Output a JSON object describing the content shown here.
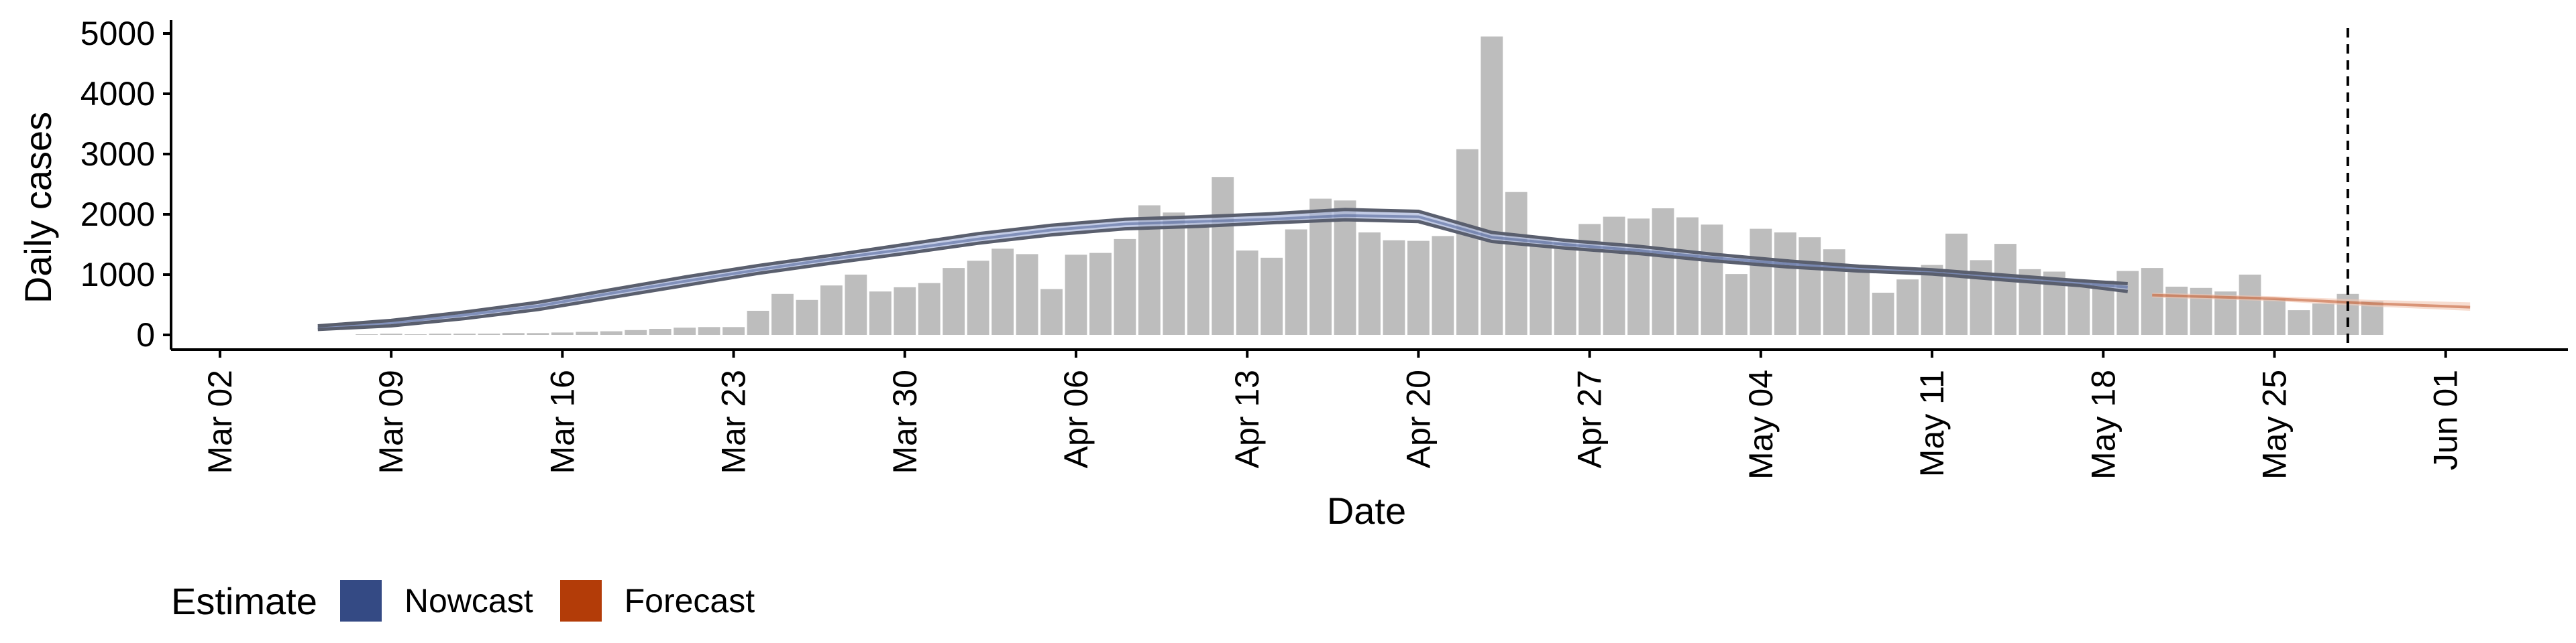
{
  "chart_data": {
    "type": "bar",
    "xlabel": "Date",
    "ylabel": "Daily cases",
    "ylim": [
      0,
      5000
    ],
    "xlim": [
      "2020-02-29",
      "2020-06-06"
    ],
    "y_ticks": [
      0,
      1000,
      2000,
      3000,
      4000,
      5000
    ],
    "x_ticks": [
      {
        "date": "2020-03-02",
        "label": "Mar 02"
      },
      {
        "date": "2020-03-09",
        "label": "Mar 09"
      },
      {
        "date": "2020-03-16",
        "label": "Mar 16"
      },
      {
        "date": "2020-03-23",
        "label": "Mar 23"
      },
      {
        "date": "2020-03-30",
        "label": "Mar 30"
      },
      {
        "date": "2020-04-06",
        "label": "Apr 06"
      },
      {
        "date": "2020-04-13",
        "label": "Apr 13"
      },
      {
        "date": "2020-04-20",
        "label": "Apr 20"
      },
      {
        "date": "2020-04-27",
        "label": "Apr 27"
      },
      {
        "date": "2020-05-04",
        "label": "May 04"
      },
      {
        "date": "2020-05-11",
        "label": "May 11"
      },
      {
        "date": "2020-05-18",
        "label": "May 18"
      },
      {
        "date": "2020-05-25",
        "label": "May 25"
      },
      {
        "date": "2020-06-01",
        "label": "Jun 01"
      }
    ],
    "grid": false,
    "legend_position": "bottom-left",
    "bars": {
      "color": "#bdbdbd",
      "x": [
        "2020-03-06",
        "2020-03-07",
        "2020-03-08",
        "2020-03-09",
        "2020-03-10",
        "2020-03-11",
        "2020-03-12",
        "2020-03-13",
        "2020-03-14",
        "2020-03-15",
        "2020-03-16",
        "2020-03-17",
        "2020-03-18",
        "2020-03-19",
        "2020-03-20",
        "2020-03-21",
        "2020-03-22",
        "2020-03-23",
        "2020-03-24",
        "2020-03-25",
        "2020-03-26",
        "2020-03-27",
        "2020-03-28",
        "2020-03-29",
        "2020-03-30",
        "2020-03-31",
        "2020-04-01",
        "2020-04-02",
        "2020-04-03",
        "2020-04-04",
        "2020-04-05",
        "2020-04-06",
        "2020-04-07",
        "2020-04-08",
        "2020-04-09",
        "2020-04-10",
        "2020-04-11",
        "2020-04-12",
        "2020-04-13",
        "2020-04-14",
        "2020-04-15",
        "2020-04-16",
        "2020-04-17",
        "2020-04-18",
        "2020-04-19",
        "2020-04-20",
        "2020-04-21",
        "2020-04-22",
        "2020-04-23",
        "2020-04-24",
        "2020-04-25",
        "2020-04-26",
        "2020-04-27",
        "2020-04-28",
        "2020-04-29",
        "2020-04-30",
        "2020-05-01",
        "2020-05-02",
        "2020-05-03",
        "2020-05-04",
        "2020-05-05",
        "2020-05-06",
        "2020-05-07",
        "2020-05-08",
        "2020-05-09",
        "2020-05-10",
        "2020-05-11",
        "2020-05-12",
        "2020-05-13",
        "2020-05-14",
        "2020-05-15",
        "2020-05-16",
        "2020-05-17",
        "2020-05-18",
        "2020-05-19",
        "2020-05-20",
        "2020-05-21",
        "2020-05-22",
        "2020-05-23",
        "2020-05-24",
        "2020-05-25",
        "2020-05-26",
        "2020-05-27",
        "2020-05-28",
        "2020-05-29"
      ],
      "values": [
        0,
        0,
        10,
        20,
        10,
        20,
        20,
        20,
        30,
        30,
        40,
        50,
        60,
        80,
        100,
        120,
        130,
        130,
        400,
        680,
        580,
        820,
        1000,
        720,
        790,
        860,
        1110,
        1230,
        1430,
        1340,
        760,
        1330,
        1360,
        1590,
        2150,
        2030,
        1850,
        2620,
        1400,
        1280,
        1750,
        2260,
        2230,
        1700,
        1570,
        1560,
        1640,
        3080,
        4950,
        2370,
        1600,
        1540,
        1840,
        1960,
        1930,
        2100,
        1950,
        1830,
        1010,
        1760,
        1700,
        1620,
        1420,
        1040,
        700,
        920,
        1160,
        1680,
        1240,
        1510,
        1090,
        1050,
        850,
        900,
        1060,
        1110,
        800,
        780,
        720,
        1000,
        590,
        410,
        520,
        680,
        560
      ]
    },
    "series": [
      {
        "name": "Nowcast",
        "color": "#344a84",
        "band_color": "#aebadc",
        "x": [
          "2020-03-06",
          "2020-03-09",
          "2020-03-12",
          "2020-03-15",
          "2020-03-18",
          "2020-03-21",
          "2020-03-24",
          "2020-03-27",
          "2020-03-30",
          "2020-04-02",
          "2020-04-05",
          "2020-04-08",
          "2020-04-11",
          "2020-04-14",
          "2020-04-17",
          "2020-04-20",
          "2020-04-23",
          "2020-04-26",
          "2020-04-29",
          "2020-05-02",
          "2020-05-05",
          "2020-05-08",
          "2020-05-11",
          "2020-05-14",
          "2020-05-17",
          "2020-05-19"
        ],
        "upper": [
          150,
          240,
          380,
          540,
          750,
          960,
          1150,
          1320,
          1500,
          1680,
          1820,
          1920,
          1960,
          2010,
          2080,
          2050,
          1700,
          1570,
          1470,
          1340,
          1230,
          1140,
          1080,
          990,
          900,
          850
        ],
        "mid": [
          120,
          200,
          330,
          480,
          690,
          890,
          1080,
          1260,
          1420,
          1590,
          1740,
          1840,
          1880,
          1920,
          1980,
          1960,
          1620,
          1500,
          1400,
          1280,
          1180,
          1100,
          1040,
          950,
          860,
          790
        ],
        "lower": [
          90,
          150,
          270,
          420,
          620,
          820,
          1020,
          1190,
          1350,
          1520,
          1660,
          1760,
          1800,
          1860,
          1910,
          1880,
          1550,
          1440,
          1350,
          1230,
          1130,
          1060,
          1010,
          910,
          820,
          720
        ]
      },
      {
        "name": "Forecast",
        "color": "#b33c08",
        "band_color": "#f2c6b2",
        "x": [
          "2020-05-20",
          "2020-05-25",
          "2020-05-29",
          "2020-06-02"
        ],
        "upper": [
          700,
          640,
          580,
          540
        ],
        "mid": [
          660,
          600,
          520,
          460
        ],
        "lower": [
          620,
          560,
          470,
          400
        ]
      }
    ],
    "annotations": [
      {
        "type": "vline",
        "date": "2020-05-28",
        "style": "dashed"
      }
    ],
    "legend": {
      "title": "Estimate",
      "items": [
        {
          "label": "Nowcast",
          "color": "#344a84"
        },
        {
          "label": "Forecast",
          "color": "#b33c08"
        }
      ]
    }
  }
}
